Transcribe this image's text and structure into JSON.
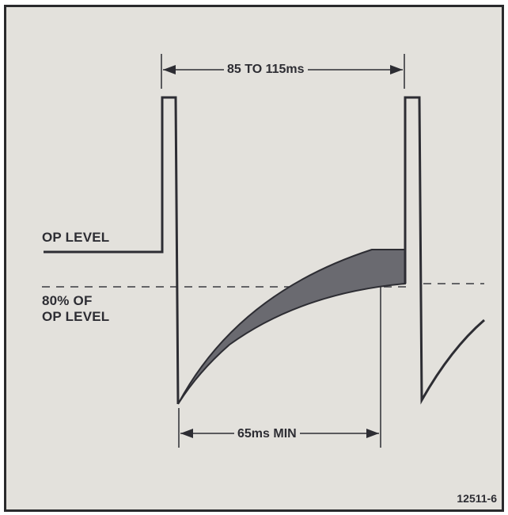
{
  "figure": {
    "labels": {
      "op_level": "OP LEVEL",
      "eighty_percent_line1": "80% OF",
      "eighty_percent_line2": "OP LEVEL"
    },
    "dimensions": {
      "period": "85 TO 115ms",
      "minimum": "65ms MIN"
    },
    "figure_number": "12511-6",
    "colors": {
      "background": "#e3e1dc",
      "ink": "#2d2d33",
      "shaded_region": "#6a6a70",
      "frame": "#2a2a2c"
    }
  }
}
